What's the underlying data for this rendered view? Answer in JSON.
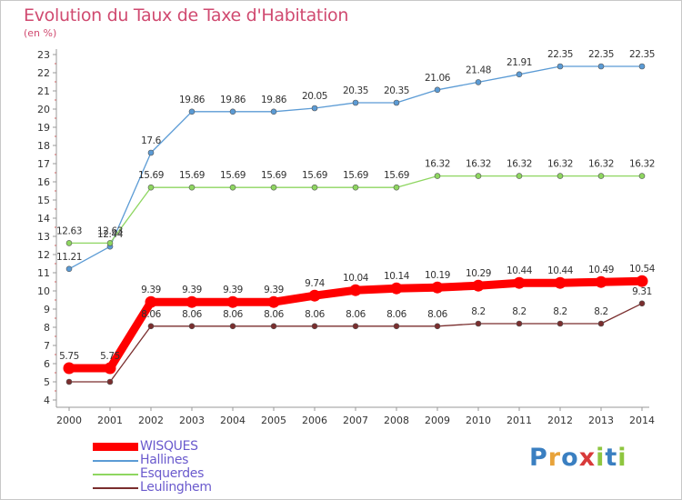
{
  "chart_data": {
    "type": "line",
    "title": "Evolution du Taux de Taxe d'Habitation",
    "subtitle": "(en %)",
    "x": [
      "2000",
      "2001",
      "2002",
      "2003",
      "2004",
      "2005",
      "2006",
      "2007",
      "2008",
      "2009",
      "2010",
      "2011",
      "2012",
      "2013",
      "2014"
    ],
    "ylim": [
      4,
      23
    ],
    "yticks": [
      4,
      5,
      6,
      7,
      8,
      9,
      10,
      11,
      12,
      13,
      14,
      15,
      16,
      17,
      18,
      19,
      20,
      21,
      22,
      23
    ],
    "grid": false,
    "legend_position": "bottom-left",
    "series": [
      {
        "name": "WISQUES",
        "color": "#ff0000",
        "values": [
          5.75,
          5.75,
          9.39,
          9.39,
          9.39,
          9.39,
          9.74,
          10.04,
          10.14,
          10.19,
          10.29,
          10.44,
          10.44,
          10.49,
          10.54
        ],
        "labels": [
          "5.75",
          "5.75",
          "9.39",
          "9.39",
          "9.39",
          "9.39",
          "9.74",
          "10.04",
          "10.14",
          "10.19",
          "10.29",
          "10.44",
          "10.44",
          "10.49",
          "10.54"
        ]
      },
      {
        "name": "Hallines",
        "color": "#5b9bd5",
        "values": [
          11.21,
          12.44,
          17.6,
          19.86,
          19.86,
          19.86,
          20.05,
          20.35,
          20.35,
          21.06,
          21.48,
          21.91,
          22.35,
          22.35,
          22.35
        ],
        "labels": [
          "11.21",
          "12.44",
          "17.6",
          "19.86",
          "19.86",
          "19.86",
          "20.05",
          "20.35",
          "20.35",
          "21.06",
          "21.48",
          "21.91",
          "22.35",
          "22.35",
          "22.35"
        ]
      },
      {
        "name": "Esquerdes",
        "color": "#8ed660",
        "values": [
          12.63,
          12.63,
          15.69,
          15.69,
          15.69,
          15.69,
          15.69,
          15.69,
          15.69,
          16.32,
          16.32,
          16.32,
          16.32,
          16.32,
          16.32
        ],
        "labels": [
          "12.63",
          "12.63",
          "15.69",
          "15.69",
          "15.69",
          "15.69",
          "15.69",
          "15.69",
          "15.69",
          "16.32",
          "16.32",
          "16.32",
          "16.32",
          "16.32",
          "16.32"
        ]
      },
      {
        "name": "Leulinghem",
        "color": "#7a2e2e",
        "values": [
          5,
          5,
          8.06,
          8.06,
          8.06,
          8.06,
          8.06,
          8.06,
          8.06,
          8.06,
          8.2,
          8.2,
          8.2,
          8.2,
          9.31
        ],
        "labels": [
          "",
          "",
          "8.06",
          "8.06",
          "8.06",
          "8.06",
          "8.06",
          "8.06",
          "8.06",
          "8.06",
          "8.2",
          "8.2",
          "8.2",
          "8.2",
          "9.31"
        ]
      }
    ]
  },
  "brand": {
    "letters": [
      "P",
      "r",
      "o",
      "x",
      "i",
      "t",
      "i"
    ],
    "colors": [
      "#3a7fc1",
      "#e8a33a",
      "#3a7fc1",
      "#d83a3a",
      "#8ec63f",
      "#3a7fc1",
      "#8ec63f"
    ]
  }
}
